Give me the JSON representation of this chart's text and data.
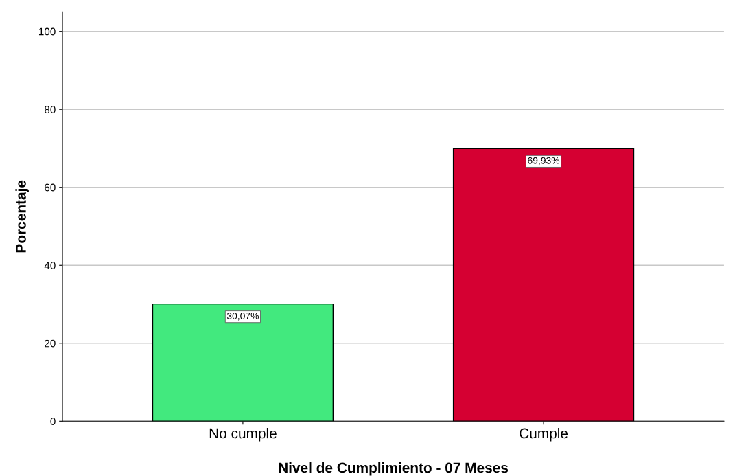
{
  "chart_data": {
    "type": "bar",
    "xlabel": "Nivel de Cumplimiento - 07 Meses",
    "ylabel": "Porcentaje",
    "categories": [
      "No cumple",
      "Cumple"
    ],
    "values": [
      30.07,
      69.93
    ],
    "colors": [
      "#42e97e",
      "#d50032"
    ],
    "value_labels": [
      "30,07%",
      "69,93%"
    ],
    "ylim": [
      0,
      105
    ],
    "yticks": [
      0,
      20,
      40,
      60,
      80,
      100
    ],
    "grid": "y"
  }
}
